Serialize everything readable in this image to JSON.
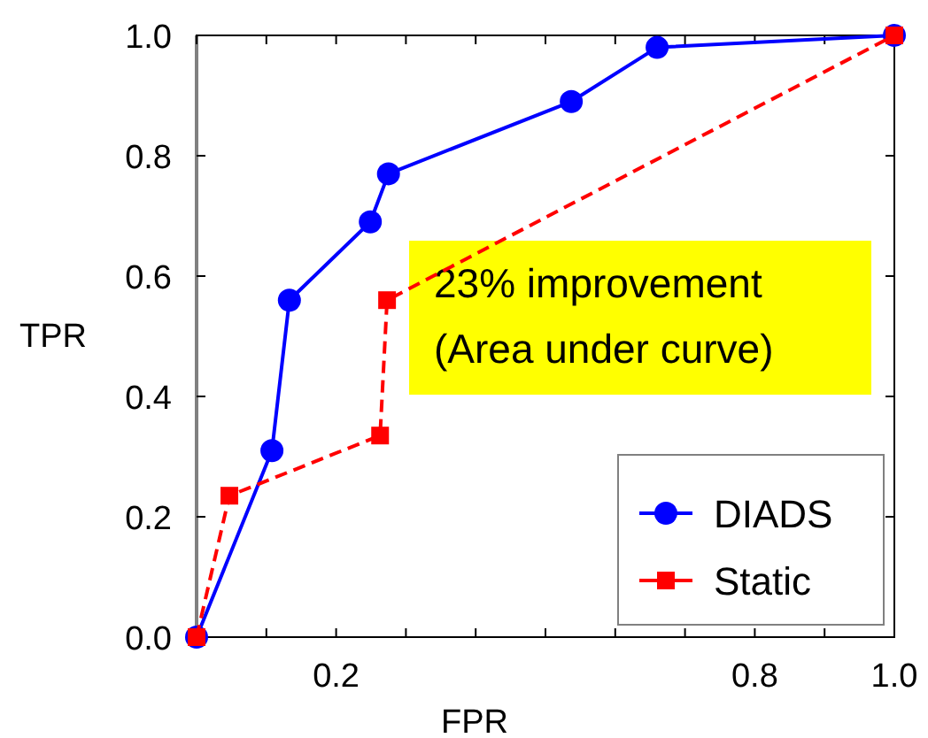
{
  "chart_data": {
    "type": "line",
    "xlabel": "FPR",
    "ylabel": "TPR",
    "xlim": [
      0,
      1
    ],
    "ylim": [
      0,
      1
    ],
    "xticks": [
      {
        "value": 0,
        "label": null
      },
      {
        "value": 0.1,
        "label": null
      },
      {
        "value": 0.2,
        "label": "0.2"
      },
      {
        "value": 0.3,
        "label": null
      },
      {
        "value": 0.4,
        "label": null
      },
      {
        "value": 0.5,
        "label": null
      },
      {
        "value": 0.6,
        "label": null
      },
      {
        "value": 0.7,
        "label": null
      },
      {
        "value": 0.8,
        "label": "0.8"
      },
      {
        "value": 0.9,
        "label": null
      },
      {
        "value": 1.0,
        "label": "1.0"
      }
    ],
    "yticks": [
      {
        "value": 0,
        "label": "0.0"
      },
      {
        "value": 0.2,
        "label": "0.2"
      },
      {
        "value": 0.4,
        "label": "0.4"
      },
      {
        "value": 0.6,
        "label": "0.6"
      },
      {
        "value": 0.8,
        "label": "0.8"
      },
      {
        "value": 1.0,
        "label": "1.0"
      }
    ],
    "series": [
      {
        "name": "DIADS",
        "color": "#0000ff",
        "marker": "circle",
        "line_style": "solid",
        "x": [
          0,
          0.108,
          0.133,
          0.249,
          0.275,
          0.537,
          0.66,
          1
        ],
        "values": [
          0,
          0.31,
          0.56,
          0.69,
          0.77,
          0.89,
          0.98,
          1
        ]
      },
      {
        "name": "Static",
        "color": "#ff0000",
        "marker": "square",
        "line_style": "dashed",
        "x": [
          0,
          0.047,
          0.263,
          0.273,
          1
        ],
        "values": [
          0,
          0.235,
          0.335,
          0.56,
          1
        ]
      }
    ],
    "annotations": [
      "23% improvement\n(Area under curve)"
    ],
    "legend": "bottom right",
    "grid": false
  }
}
